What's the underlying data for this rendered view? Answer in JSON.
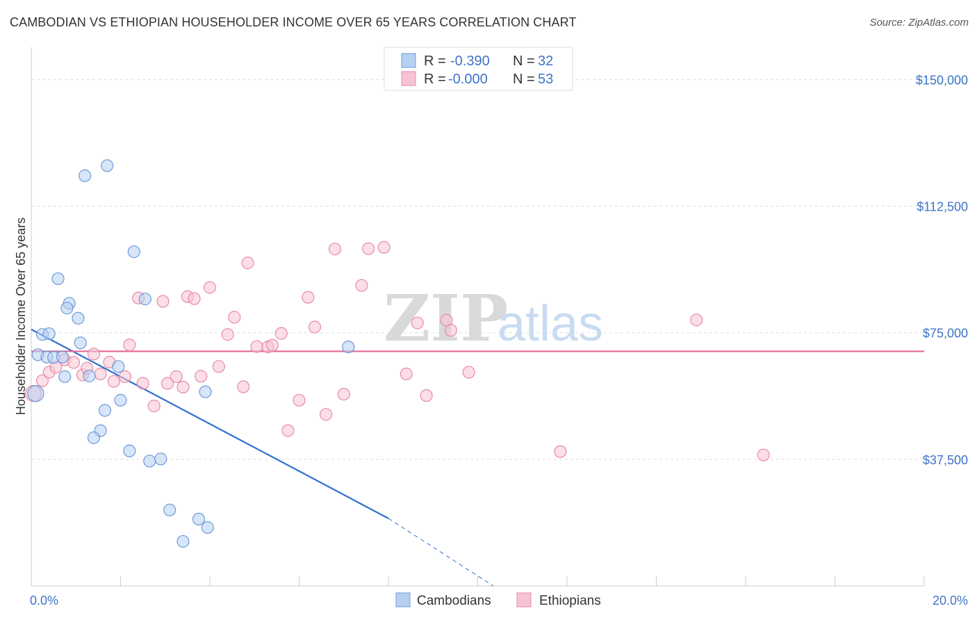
{
  "header": {
    "title": "CAMBODIAN VS ETHIOPIAN HOUSEHOLDER INCOME OVER 65 YEARS CORRELATION CHART",
    "source": "Source: ZipAtlas.com"
  },
  "colors": {
    "cambodian_fill": "#b6d0f2",
    "cambodian_stroke": "#6d9ad8",
    "cambodian_line": "#2f6fd1",
    "ethiopian_fill": "#f7c3d2",
    "ethiopian_stroke": "#e88aa6",
    "ethiopian_line": "#e0689a",
    "axis_text": "#3d74c9",
    "grid": "#dddddd"
  },
  "watermark": {
    "zip": "ZIP",
    "atlas": "atlas"
  },
  "legend": {
    "rows": [
      {
        "r_label": "R =",
        "r_value": "-0.390",
        "n_label": "N =",
        "n_value": "32"
      },
      {
        "r_label": "R =",
        "r_value": "-0.000",
        "n_label": "N =",
        "n_value": "53"
      }
    ]
  },
  "bottom_legend": [
    "Cambodians",
    "Ethiopians"
  ],
  "chart_data": {
    "type": "scatter",
    "title": "CAMBODIAN VS ETHIOPIAN HOUSEHOLDER INCOME OVER 65 YEARS CORRELATION CHART",
    "xlabel": "",
    "ylabel": "Householder Income Over 65 years",
    "xlim": [
      0,
      20
    ],
    "ylim": [
      0,
      157500
    ],
    "x_ticks": [
      "0.0%",
      "20.0%"
    ],
    "y_ticks": [
      {
        "value": 150000,
        "label": "$150,000"
      },
      {
        "value": 112500,
        "label": "$112,500"
      },
      {
        "value": 75000,
        "label": "$75,000"
      },
      {
        "value": 37500,
        "label": "$37,500"
      }
    ],
    "series": [
      {
        "name": "Cambodians",
        "r": -0.39,
        "n": 32,
        "points": [
          [
            0.1,
            57000,
            30
          ],
          [
            0.15,
            68500,
            22
          ],
          [
            0.25,
            74500,
            22
          ],
          [
            0.4,
            74700,
            22
          ],
          [
            0.35,
            67800,
            22
          ],
          [
            0.5,
            67700,
            22
          ],
          [
            0.7,
            67800,
            22
          ],
          [
            0.75,
            62000,
            22
          ],
          [
            1.2,
            121500,
            22
          ],
          [
            1.7,
            124500,
            22
          ],
          [
            0.6,
            91000,
            22
          ],
          [
            0.85,
            83700,
            22
          ],
          [
            0.8,
            82300,
            22
          ],
          [
            1.05,
            79300,
            22
          ],
          [
            1.1,
            72000,
            22
          ],
          [
            1.3,
            62200,
            22
          ],
          [
            1.95,
            65000,
            22
          ],
          [
            1.65,
            52000,
            22
          ],
          [
            2.0,
            55000,
            22
          ],
          [
            1.55,
            46000,
            22
          ],
          [
            1.4,
            43900,
            22
          ],
          [
            2.3,
            99000,
            22
          ],
          [
            2.55,
            85000,
            22
          ],
          [
            2.2,
            40000,
            22
          ],
          [
            2.65,
            37000,
            22
          ],
          [
            2.9,
            37600,
            22
          ],
          [
            3.9,
            57500,
            22
          ],
          [
            3.1,
            22500,
            22
          ],
          [
            3.75,
            19800,
            22
          ],
          [
            3.95,
            17300,
            22
          ],
          [
            3.4,
            13200,
            22
          ],
          [
            7.1,
            70800,
            22
          ]
        ],
        "trend": {
          "x0": 0,
          "y0": 76000,
          "x1": 8.0,
          "y1": 20000,
          "dash_to_x": 10.35,
          "dash_to_y": 0
        }
      },
      {
        "name": "Ethiopians",
        "r": -0.0,
        "n": 53,
        "points": [
          [
            0.05,
            57000,
            30
          ],
          [
            0.25,
            60800,
            22
          ],
          [
            0.4,
            63300,
            22
          ],
          [
            0.55,
            64800,
            22
          ],
          [
            0.75,
            67000,
            22
          ],
          [
            0.95,
            66200,
            22
          ],
          [
            1.15,
            62500,
            22
          ],
          [
            1.25,
            64500,
            22
          ],
          [
            1.4,
            68700,
            22
          ],
          [
            1.55,
            62800,
            22
          ],
          [
            1.75,
            66300,
            22
          ],
          [
            1.85,
            60600,
            22
          ],
          [
            2.1,
            62000,
            22
          ],
          [
            2.2,
            71400,
            22
          ],
          [
            2.5,
            60000,
            22
          ],
          [
            2.75,
            53300,
            22
          ],
          [
            2.4,
            85300,
            22
          ],
          [
            2.95,
            84300,
            22
          ],
          [
            3.05,
            60000,
            22
          ],
          [
            3.25,
            62000,
            22
          ],
          [
            3.4,
            58900,
            22
          ],
          [
            3.5,
            85700,
            22
          ],
          [
            3.65,
            85100,
            22
          ],
          [
            3.8,
            62100,
            22
          ],
          [
            4.0,
            88400,
            22
          ],
          [
            4.2,
            65000,
            22
          ],
          [
            4.4,
            74500,
            22
          ],
          [
            4.55,
            79600,
            22
          ],
          [
            4.75,
            59000,
            22
          ],
          [
            4.85,
            95700,
            22
          ],
          [
            5.05,
            70900,
            22
          ],
          [
            5.3,
            70800,
            22
          ],
          [
            5.4,
            71300,
            22
          ],
          [
            5.6,
            74800,
            22
          ],
          [
            5.75,
            46000,
            22
          ],
          [
            6.0,
            55000,
            22
          ],
          [
            6.2,
            85500,
            22
          ],
          [
            6.35,
            76700,
            22
          ],
          [
            6.6,
            50800,
            22
          ],
          [
            6.8,
            99800,
            22
          ],
          [
            7.0,
            56800,
            22
          ],
          [
            7.4,
            89000,
            22
          ],
          [
            7.55,
            99900,
            22
          ],
          [
            7.9,
            100300,
            22
          ],
          [
            8.4,
            62800,
            22
          ],
          [
            8.65,
            77900,
            22
          ],
          [
            8.85,
            56400,
            22
          ],
          [
            9.3,
            78700,
            22
          ],
          [
            9.4,
            75700,
            22
          ],
          [
            9.8,
            63300,
            22
          ],
          [
            11.85,
            39800,
            22
          ],
          [
            14.9,
            78800,
            22
          ],
          [
            16.4,
            38800,
            22
          ]
        ],
        "trend": {
          "x0": 0,
          "y0": 69500,
          "x1": 20,
          "y1": 69500
        }
      }
    ]
  }
}
